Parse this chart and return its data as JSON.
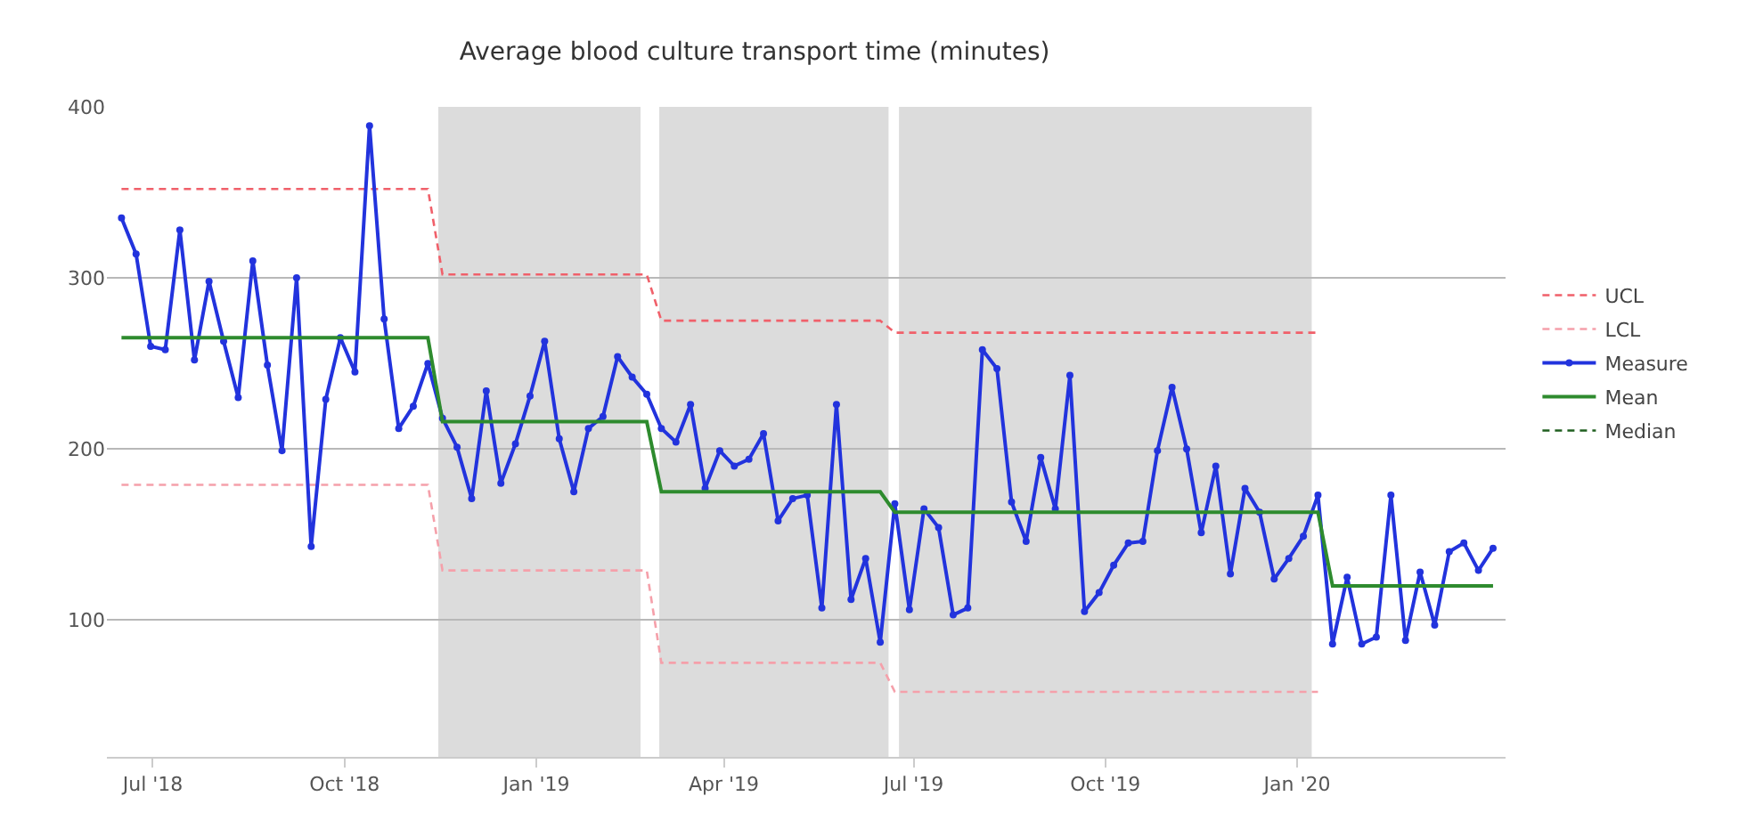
{
  "chart_data": {
    "type": "line",
    "title": "Average blood culture transport time (minutes)",
    "x": [
      "2018-06-16",
      "2018-06-23",
      "2018-06-30",
      "2018-07-07",
      "2018-07-14",
      "2018-07-21",
      "2018-07-28",
      "2018-08-04",
      "2018-08-11",
      "2018-08-18",
      "2018-08-25",
      "2018-09-01",
      "2018-09-08",
      "2018-09-15",
      "2018-09-22",
      "2018-09-29",
      "2018-10-06",
      "2018-10-13",
      "2018-10-20",
      "2018-10-27",
      "2018-11-03",
      "2018-11-10",
      "2018-11-17",
      "2018-11-24",
      "2018-12-01",
      "2018-12-08",
      "2018-12-15",
      "2018-12-22",
      "2018-12-29",
      "2019-01-05",
      "2019-01-12",
      "2019-01-19",
      "2019-01-26",
      "2019-02-02",
      "2019-02-09",
      "2019-02-16",
      "2019-02-23",
      "2019-03-02",
      "2019-03-09",
      "2019-03-16",
      "2019-03-23",
      "2019-03-30",
      "2019-04-06",
      "2019-04-13",
      "2019-04-20",
      "2019-04-27",
      "2019-05-04",
      "2019-05-11",
      "2019-05-18",
      "2019-05-25",
      "2019-06-01",
      "2019-06-08",
      "2019-06-15",
      "2019-06-22",
      "2019-06-29",
      "2019-07-06",
      "2019-07-13",
      "2019-07-20",
      "2019-07-27",
      "2019-08-03",
      "2019-08-10",
      "2019-08-17",
      "2019-08-24",
      "2019-08-31",
      "2019-09-07",
      "2019-09-14",
      "2019-09-21",
      "2019-09-28",
      "2019-10-05",
      "2019-10-12",
      "2019-10-19",
      "2019-10-26",
      "2019-11-02",
      "2019-11-09",
      "2019-11-16",
      "2019-11-23",
      "2019-11-30",
      "2019-12-07",
      "2019-12-14",
      "2019-12-21",
      "2019-12-28",
      "2020-01-04",
      "2020-01-11",
      "2020-01-18",
      "2020-01-25",
      "2020-02-01",
      "2020-02-08",
      "2020-02-15",
      "2020-02-22",
      "2020-02-29",
      "2020-03-07",
      "2020-03-14",
      "2020-03-21",
      "2020-03-28",
      "2020-04-04"
    ],
    "xlim": [
      "2018-06-09",
      "2020-04-10"
    ],
    "xticks": [
      {
        "value": "2018-07-01",
        "label": "Jul '18"
      },
      {
        "value": "2018-10-01",
        "label": "Oct '18"
      },
      {
        "value": "2019-01-01",
        "label": "Jan '19"
      },
      {
        "value": "2019-04-01",
        "label": "Apr '19"
      },
      {
        "value": "2019-07-01",
        "label": "Jul '19"
      },
      {
        "value": "2019-10-01",
        "label": "Oct '19"
      },
      {
        "value": "2020-01-01",
        "label": "Jan '20"
      }
    ],
    "ylim": [
      20,
      400
    ],
    "yticks": [
      100,
      200,
      300,
      400
    ],
    "grid": "y",
    "legend": "right",
    "bands": [
      {
        "axis": "x",
        "from": "2018-11-15",
        "to": "2019-02-20",
        "color": "#dcdcdc"
      },
      {
        "axis": "x",
        "from": "2019-03-01",
        "to": "2019-06-19",
        "color": "#dcdcdc"
      },
      {
        "axis": "x",
        "from": "2019-06-24",
        "to": "2020-01-08",
        "color": "#dcdcdc"
      }
    ],
    "series": [
      {
        "name": "UCL",
        "color": "#f0606a",
        "line_style": "dashed",
        "marker": "none",
        "values": [
          352,
          352,
          352,
          352,
          352,
          352,
          352,
          352,
          352,
          352,
          352,
          352,
          352,
          352,
          352,
          352,
          352,
          352,
          352,
          352,
          352,
          352,
          302,
          302,
          302,
          302,
          302,
          302,
          302,
          302,
          302,
          302,
          302,
          302,
          302,
          302,
          302,
          275,
          275,
          275,
          275,
          275,
          275,
          275,
          275,
          275,
          275,
          275,
          275,
          275,
          275,
          275,
          275,
          268,
          268,
          268,
          268,
          268,
          268,
          268,
          268,
          268,
          268,
          268,
          268,
          268,
          268,
          268,
          268,
          268,
          268,
          268,
          268,
          268,
          268,
          268,
          268,
          268,
          268,
          268,
          268,
          268,
          268,
          null,
          null,
          null,
          null,
          null,
          null,
          null,
          null,
          null,
          null,
          null,
          null
        ]
      },
      {
        "name": "LCL",
        "color": "#f5a0aa",
        "line_style": "dashed",
        "marker": "none",
        "values": [
          179,
          179,
          179,
          179,
          179,
          179,
          179,
          179,
          179,
          179,
          179,
          179,
          179,
          179,
          179,
          179,
          179,
          179,
          179,
          179,
          179,
          179,
          129,
          129,
          129,
          129,
          129,
          129,
          129,
          129,
          129,
          129,
          129,
          129,
          129,
          129,
          129,
          75,
          75,
          75,
          75,
          75,
          75,
          75,
          75,
          75,
          75,
          75,
          75,
          75,
          75,
          75,
          75,
          58,
          58,
          58,
          58,
          58,
          58,
          58,
          58,
          58,
          58,
          58,
          58,
          58,
          58,
          58,
          58,
          58,
          58,
          58,
          58,
          58,
          58,
          58,
          58,
          58,
          58,
          58,
          58,
          58,
          58,
          null,
          null,
          null,
          null,
          null,
          null,
          null,
          null,
          null,
          null,
          null,
          null
        ]
      },
      {
        "name": "Measure",
        "color": "#2233dd",
        "line_style": "solid",
        "marker": "circle",
        "values": [
          335,
          314,
          260,
          258,
          328,
          252,
          298,
          263,
          230,
          310,
          249,
          199,
          300,
          143,
          229,
          265,
          245,
          389,
          276,
          212,
          225,
          250,
          218,
          201,
          171,
          234,
          180,
          203,
          231,
          263,
          206,
          175,
          212,
          219,
          254,
          242,
          232,
          212,
          204,
          226,
          177,
          199,
          190,
          194,
          209,
          158,
          171,
          173,
          107,
          226,
          112,
          136,
          87,
          168,
          106,
          165,
          154,
          103,
          107,
          258,
          247,
          169,
          146,
          195,
          165,
          243,
          105,
          116,
          132,
          145,
          146,
          199,
          236,
          200,
          151,
          190,
          127,
          177,
          163,
          124,
          136,
          149,
          173,
          86,
          125,
          86,
          90,
          173,
          88,
          128,
          97,
          140,
          145,
          129,
          142
        ]
      },
      {
        "name": "Mean",
        "color": "#2e8b2e",
        "line_style": "solid",
        "marker": "none",
        "values": [
          265,
          265,
          265,
          265,
          265,
          265,
          265,
          265,
          265,
          265,
          265,
          265,
          265,
          265,
          265,
          265,
          265,
          265,
          265,
          265,
          265,
          265,
          216,
          216,
          216,
          216,
          216,
          216,
          216,
          216,
          216,
          216,
          216,
          216,
          216,
          216,
          216,
          175,
          175,
          175,
          175,
          175,
          175,
          175,
          175,
          175,
          175,
          175,
          175,
          175,
          175,
          175,
          175,
          163,
          163,
          163,
          163,
          163,
          163,
          163,
          163,
          163,
          163,
          163,
          163,
          163,
          163,
          163,
          163,
          163,
          163,
          163,
          163,
          163,
          163,
          163,
          163,
          163,
          163,
          163,
          163,
          163,
          163,
          120,
          120,
          120,
          120,
          120,
          120,
          120,
          120,
          120,
          120,
          120,
          120
        ]
      },
      {
        "name": "Median",
        "color": "#1f5f1f",
        "line_style": "dashed",
        "marker": "none",
        "values": [
          null,
          null,
          null,
          null,
          null,
          null,
          null,
          null,
          null,
          null,
          null,
          null,
          null,
          null,
          null,
          null,
          null,
          null,
          null,
          null,
          null,
          null,
          null,
          null,
          null,
          null,
          null,
          null,
          null,
          null,
          null,
          null,
          null,
          null,
          null,
          null,
          null,
          null,
          null,
          null,
          null,
          null,
          null,
          null,
          null,
          null,
          null,
          null,
          null,
          null,
          null,
          null,
          null,
          null,
          null,
          null,
          null,
          null,
          null,
          null,
          null,
          null,
          null,
          null,
          null,
          null,
          null,
          null,
          null,
          null,
          null,
          null,
          null,
          null,
          null,
          null,
          null,
          null,
          null,
          null,
          null,
          null,
          null,
          null,
          null,
          null,
          null,
          null,
          null,
          null,
          null,
          null,
          null,
          null,
          null
        ]
      }
    ]
  }
}
